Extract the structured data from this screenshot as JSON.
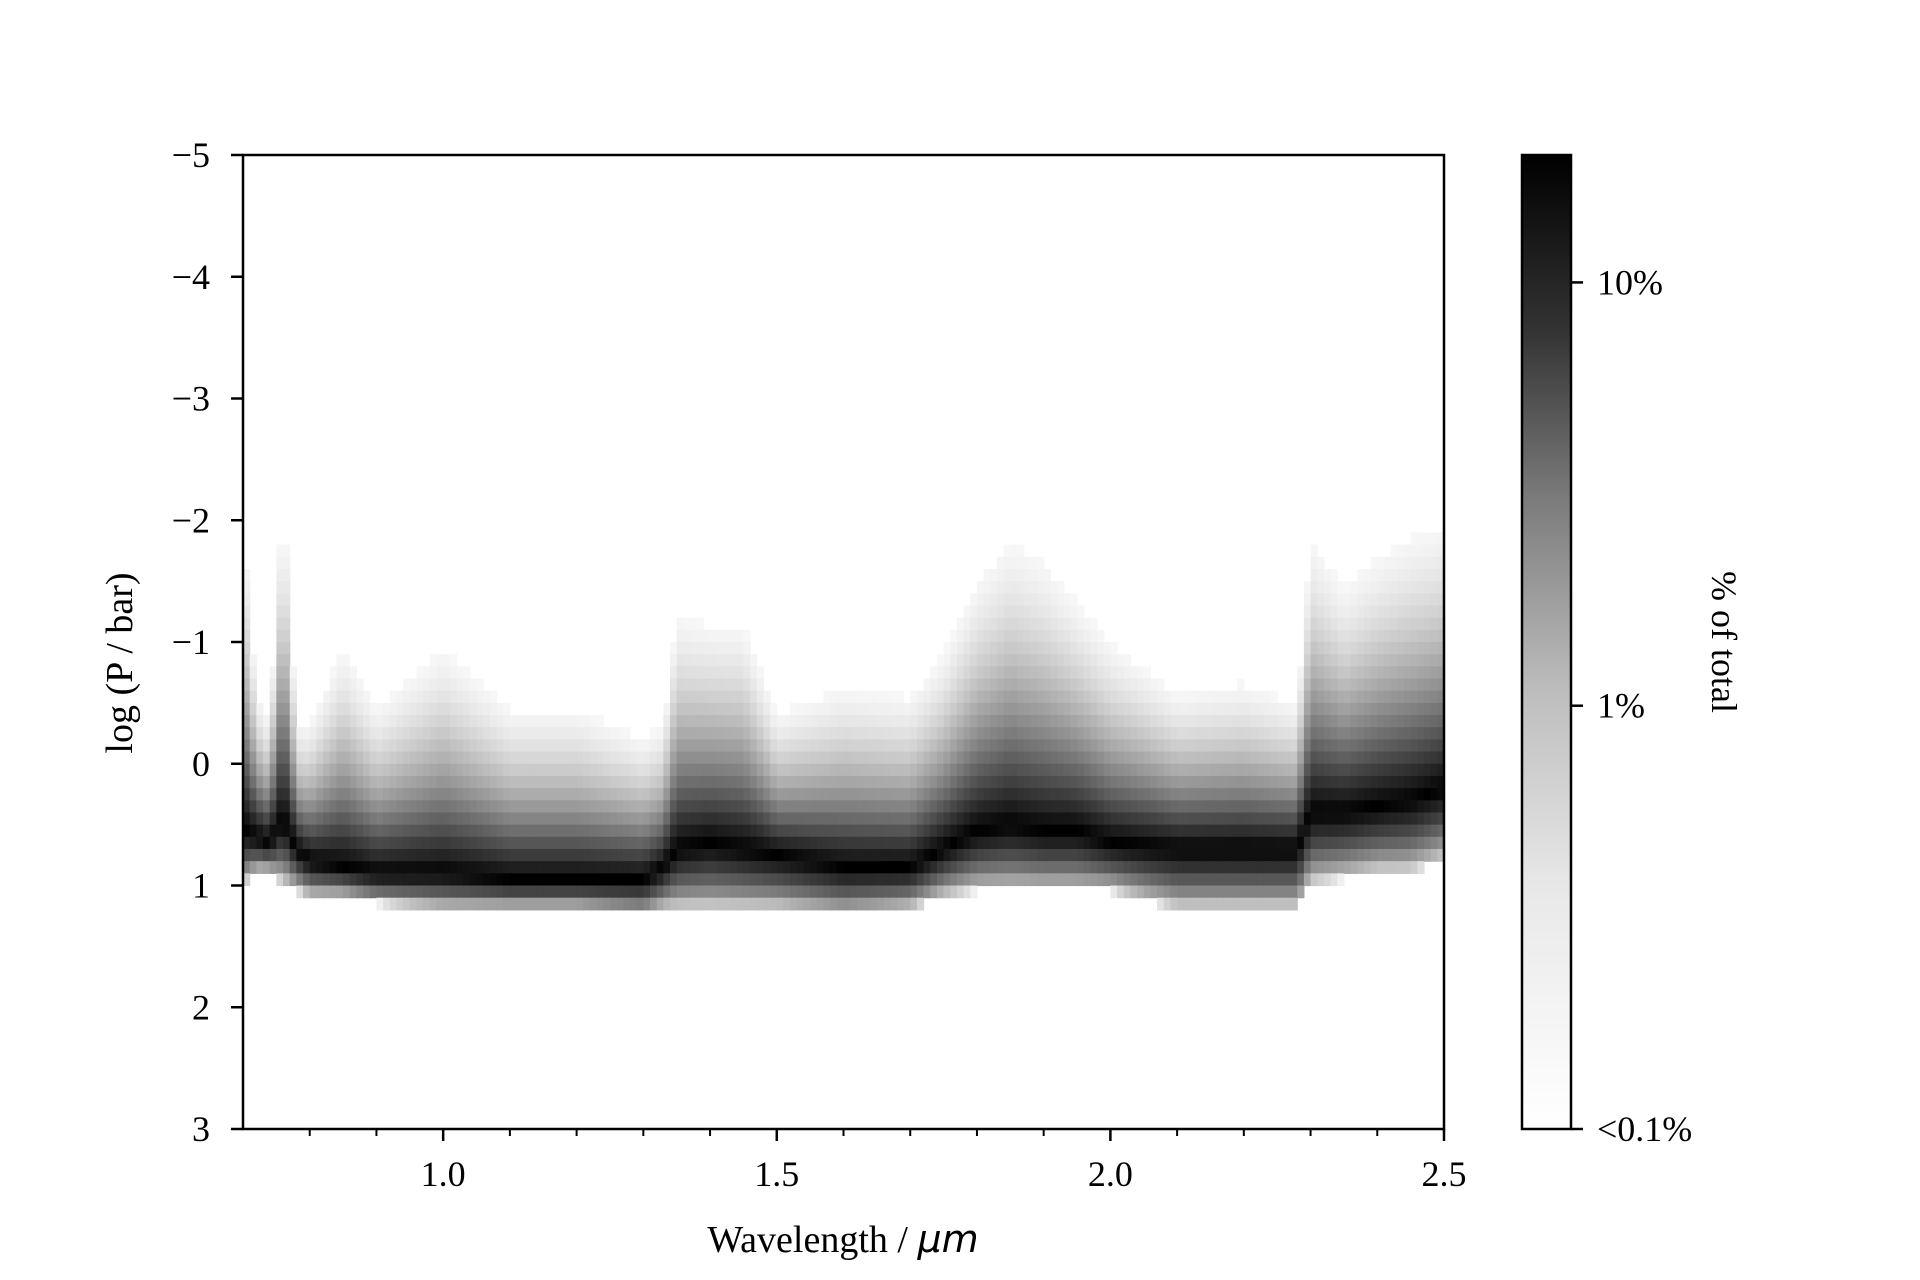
{
  "chart_data": {
    "type": "heatmap",
    "title": "",
    "xlabel_text": "Wavelength / ",
    "xlabel_unit": "μm",
    "ylabel": "log (P / bar)",
    "xlim": [
      0.7,
      2.5
    ],
    "ylim": [
      3,
      -5
    ],
    "y_inverted": true,
    "x_ticks": [
      1.0,
      1.5,
      2.0,
      2.5
    ],
    "x_tick_labels": [
      "1.0",
      "1.5",
      "2.0",
      "2.5"
    ],
    "x_minor_ticks": [
      0.8,
      0.9,
      1.1,
      1.2,
      1.3,
      1.4,
      1.6,
      1.7,
      1.8,
      1.9,
      2.1,
      2.2,
      2.3,
      2.4
    ],
    "y_ticks": [
      -5,
      -4,
      -3,
      -2,
      -1,
      0,
      1,
      2,
      3
    ],
    "y_tick_labels": [
      "−5",
      "−4",
      "−3",
      "−2",
      "−1",
      "0",
      "1",
      "2",
      "3"
    ],
    "colormap": "greys",
    "colorbar": {
      "label": "% of total",
      "scale": "log",
      "range_percent": [
        0.1,
        20
      ],
      "ticks": [
        0.1,
        1,
        10
      ],
      "tick_labels": [
        "<0.1%",
        "1%",
        "10%"
      ]
    },
    "contribution_profile": {
      "wavelength_um": [
        0.7,
        0.72,
        0.74,
        0.76,
        0.78,
        0.8,
        0.85,
        0.9,
        1.0,
        1.1,
        1.2,
        1.3,
        1.33,
        1.35,
        1.4,
        1.45,
        1.5,
        1.6,
        1.7,
        1.75,
        1.8,
        1.85,
        1.9,
        1.95,
        2.0,
        2.1,
        2.2,
        2.28,
        2.3,
        2.35,
        2.4,
        2.45,
        2.5
      ],
      "peak_logP": [
        0.55,
        0.6,
        0.65,
        0.45,
        0.7,
        0.8,
        0.85,
        0.9,
        0.9,
        0.95,
        0.95,
        0.95,
        0.85,
        0.7,
        0.65,
        0.7,
        0.75,
        0.85,
        0.85,
        0.7,
        0.55,
        0.5,
        0.55,
        0.55,
        0.65,
        0.7,
        0.7,
        0.7,
        0.4,
        0.4,
        0.35,
        0.3,
        0.2
      ],
      "top_logP": [
        -2.6,
        -0.9,
        -0.6,
        -3.0,
        -0.6,
        -0.6,
        -1.4,
        -0.8,
        -1.4,
        -0.8,
        -0.8,
        -0.5,
        -0.6,
        -1.7,
        -1.6,
        -1.6,
        -0.7,
        -1.0,
        -0.9,
        -1.3,
        -2.0,
        -2.4,
        -2.2,
        -1.8,
        -1.4,
        -0.9,
        -1.0,
        -0.8,
        -2.4,
        -1.9,
        -2.2,
        -2.4,
        -2.5
      ],
      "bottom_logP": [
        1.0,
        0.9,
        0.9,
        1.0,
        1.05,
        1.1,
        1.1,
        1.15,
        1.2,
        1.2,
        1.2,
        1.25,
        1.2,
        1.2,
        1.2,
        1.2,
        1.2,
        1.25,
        1.2,
        1.1,
        1.05,
        1.05,
        1.05,
        1.05,
        1.05,
        1.2,
        1.2,
        1.2,
        1.0,
        0.95,
        0.9,
        0.9,
        0.8
      ]
    }
  }
}
